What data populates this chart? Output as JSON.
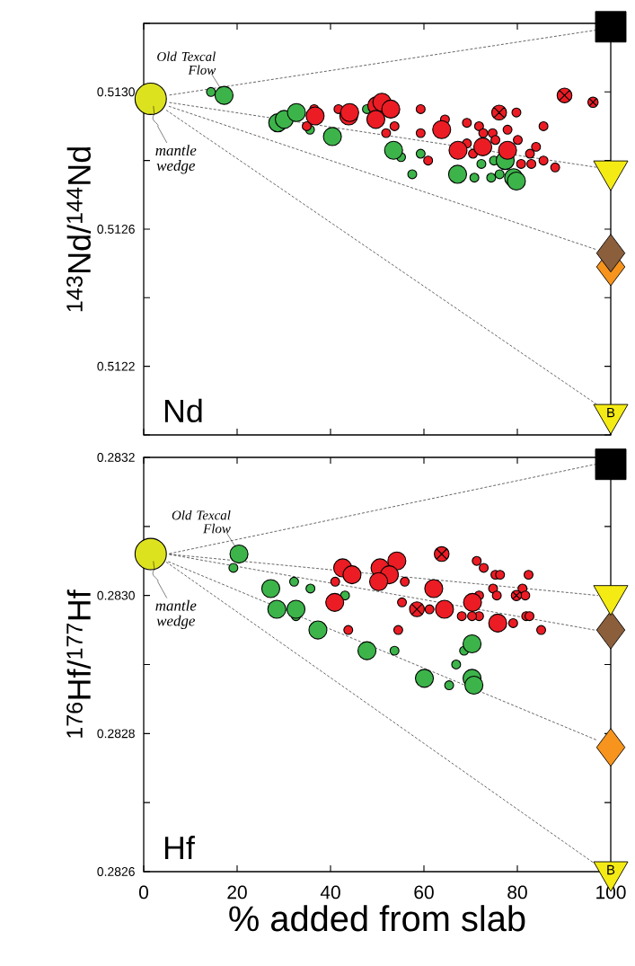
{
  "chart_data": [
    {
      "type": "bubble",
      "ylabel": "$^{143}$Nd/$^{144}$Nd",
      "xlim": [
        0,
        100
      ],
      "ylim": [
        0.512,
        0.5132
      ],
      "xticks": [
        0,
        20,
        40,
        60,
        80,
        100
      ],
      "yticks": [
        {
          "value": 0.512,
          "label": null
        },
        {
          "value": 0.5122,
          "label": "0.5122"
        },
        {
          "value": 0.5124,
          "label": null
        },
        {
          "value": 0.5126,
          "label": "0.5126"
        },
        {
          "value": 0.5128,
          "label": null
        },
        {
          "value": 0.513,
          "label": "0.5130"
        },
        {
          "value": 0.5132,
          "label": null
        }
      ],
      "tick_labels": "y",
      "annotations": [
        "Nd",
        {
          "text": "Old Texcal Flow",
          "x": 17.2,
          "y": 0.51299
        },
        {
          "text": "mantle wedge",
          "x": 1.5,
          "y": 0.51298
        },
        "B"
      ],
      "series": [
        {
          "type": "line",
          "line_style": "dashed",
          "color": "#000000",
          "x": [
            5.1,
            96.7
          ],
          "values": [
            0.51299,
            0.51318
          ]
        },
        {
          "type": "line",
          "line_style": "dashed",
          "color": "#000000",
          "x": [
            5.1,
            97.1
          ],
          "values": [
            0.51297,
            0.51278
          ]
        },
        {
          "type": "line",
          "line_style": "dashed",
          "color": "#000000",
          "x": [
            5.0,
            97.0
          ],
          "values": [
            0.51296,
            0.51254
          ]
        },
        {
          "type": "line",
          "line_style": "dashed",
          "color": "#000000",
          "x": [
            4.5,
            96.9
          ],
          "values": [
            0.51295,
            0.51209
          ]
        },
        {
          "type": "bubble",
          "marker": "circle",
          "color": "#3cb44a",
          "x": [
            14.4,
            35.6,
            47.8,
            55.1,
            59.3,
            57.5,
            70.8,
            72.3,
            74.4,
            76.2,
            75.0
          ],
          "values": [
            0.513,
            0.51289,
            0.51295,
            0.51281,
            0.51282,
            0.51276,
            0.51275,
            0.51279,
            0.51275,
            0.51276,
            0.5128
          ],
          "sizes": [
            0.08,
            0.08,
            0.08,
            0.08,
            0.08,
            0.08,
            0.08,
            0.08,
            0.08,
            0.08,
            0.08
          ]
        },
        {
          "type": "bubble",
          "marker": "circle",
          "color": "#ec1c24",
          "x": [
            36.5,
            34.9,
            41.7,
            53.7,
            51.9,
            59.3,
            59.3,
            60.9,
            64.5,
            69.2,
            71.8,
            72.7,
            74.7,
            75.3,
            79.8,
            77.9,
            80.1,
            85.6,
            84.0,
            82.7,
            80.8,
            83.0,
            85.6,
            88.1,
            70.5,
            69.2
          ],
          "values": [
            0.51295,
            0.5129,
            0.51295,
            0.5129,
            0.51288,
            0.51295,
            0.51288,
            0.5128,
            0.51292,
            0.51291,
            0.5129,
            0.51288,
            0.51288,
            0.51286,
            0.51294,
            0.51289,
            0.51286,
            0.5129,
            0.51284,
            0.51282,
            0.51279,
            0.51279,
            0.5128,
            0.51278,
            0.51282,
            0.51285
          ],
          "sizes": [
            0.08,
            0.08,
            0.08,
            0.08,
            0.08,
            0.08,
            0.08,
            0.08,
            0.08,
            0.08,
            0.08,
            0.08,
            0.08,
            0.08,
            0.08,
            0.08,
            0.08,
            0.08,
            0.08,
            0.08,
            0.08,
            0.08,
            0.08,
            0.08,
            0.08,
            0.08
          ]
        },
        {
          "type": "bubble",
          "marker": "cross",
          "color": "#ec1c24",
          "x": [
            96.2
          ],
          "values": [
            0.51297
          ],
          "sizes": [
            0.16
          ]
        },
        {
          "type": "bubble",
          "marker": "circle",
          "color": "#3cb44a",
          "x": [
            17.2,
            28.7,
            30.1,
            32.7,
            40.4,
            53.5,
            67.2,
            77.4,
            79.2,
            79.8
          ],
          "values": [
            0.51299,
            0.51291,
            0.51292,
            0.51294,
            0.51287,
            0.51283,
            0.51276,
            0.5128,
            0.51275,
            0.51274
          ],
          "sizes": [
            0.33,
            0.33,
            0.33,
            0.33,
            0.33,
            0.33,
            0.33,
            0.33,
            0.33,
            0.33
          ]
        },
        {
          "type": "bubble",
          "marker": "circle",
          "color": "#ec1c24",
          "x": [
            36.7,
            43.9,
            44.1,
            49.9,
            51.0,
            52.9,
            49.7,
            63.8,
            67.3,
            72.6,
            77.9
          ],
          "values": [
            0.51293,
            0.51293,
            0.51294,
            0.51296,
            0.51297,
            0.51295,
            0.51292,
            0.51289,
            0.51283,
            0.51284,
            0.51283
          ],
          "sizes": [
            0.33,
            0.33,
            0.33,
            0.33,
            0.33,
            0.33,
            0.33,
            0.33,
            0.33,
            0.33,
            0.33
          ]
        },
        {
          "type": "bubble",
          "marker": "cross",
          "color": "#ec1c24",
          "x": [
            76.1,
            90.1
          ],
          "values": [
            0.51294,
            0.51299
          ],
          "sizes": [
            0.33,
            0.33
          ]
        },
        {
          "type": "bubble",
          "marker": "circle",
          "color": "#dde21f",
          "x": [
            1.5
          ],
          "values": [
            0.51298
          ],
          "sizes": [
            1
          ]
        },
        {
          "type": "scatter",
          "marker": "square",
          "color": "#000000",
          "x": [
            100
          ],
          "values": [
            0.51319
          ]
        },
        {
          "type": "scatter",
          "marker": "diamond",
          "color": "#f7941d",
          "x": [
            100
          ],
          "values": [
            0.51249
          ]
        },
        {
          "type": "scatter",
          "marker": "diamond",
          "color": "#8b5e3c",
          "x": [
            100
          ],
          "values": [
            0.51253
          ]
        },
        {
          "type": "scatter",
          "marker": "triangle",
          "color": "#f5eb14",
          "x": [
            100
          ],
          "values": [
            0.51277
          ]
        },
        {
          "type": "scatter",
          "marker": "triangle",
          "color": "#f5eb14",
          "x": [
            100
          ],
          "values": [
            0.51206
          ]
        }
      ]
    },
    {
      "type": "bubble",
      "ylabel": "$^{176}$Hf/$^{177}$Hf",
      "xlabel": "% added from slab",
      "xlim": [
        0,
        100
      ],
      "ylim": [
        0.2826,
        0.2832
      ],
      "xticks": [
        0,
        20,
        40,
        60,
        80,
        100
      ],
      "yticks": [
        {
          "value": 0.2826,
          "label": "0.2826"
        },
        {
          "value": 0.2827,
          "label": null
        },
        {
          "value": 0.2828,
          "label": "0.2828"
        },
        {
          "value": 0.2829,
          "label": null
        },
        {
          "value": 0.283,
          "label": "0.2830"
        },
        {
          "value": 0.2831,
          "label": null
        },
        {
          "value": 0.2832,
          "label": "0.2832"
        }
      ],
      "annotations": [
        "Hf",
        {
          "text": "Old Texcal Flow",
          "x": 20.4,
          "y": 0.28306
        },
        {
          "text": "mantle wedge",
          "x": 1.5,
          "y": 0.28306
        },
        "B"
      ],
      "series": [
        {
          "type": "line",
          "line_style": "dashed",
          "color": "#000000",
          "x": [
            5.1,
            96.7
          ],
          "values": [
            0.28306,
            0.28319
          ]
        },
        {
          "type": "line",
          "line_style": "dashed",
          "color": "#000000",
          "x": [
            5.1,
            97.3
          ],
          "values": [
            0.28306,
            0.283
          ]
        },
        {
          "type": "line",
          "line_style": "dashed",
          "color": "#000000",
          "x": [
            5.1,
            96.5
          ],
          "values": [
            0.28306,
            0.28295
          ]
        },
        {
          "type": "line",
          "line_style": "dashed",
          "color": "#000000",
          "x": [
            4.9,
            97.2
          ],
          "values": [
            0.28305,
            0.28279
          ]
        },
        {
          "type": "line",
          "line_style": "dashed",
          "color": "#000000",
          "x": [
            4.5,
            96.9
          ],
          "values": [
            0.28305,
            0.28261
          ]
        },
        {
          "type": "bubble",
          "marker": "circle",
          "color": "#3cb44a",
          "x": [
            19.2,
            32.2,
            35.7,
            32.6,
            43.1,
            53.7,
            66.9,
            65.4,
            68.6
          ],
          "values": [
            0.28304,
            0.28302,
            0.28301,
            0.28297,
            0.283,
            0.28292,
            0.2829,
            0.28287,
            0.28292
          ],
          "sizes": [
            0.08,
            0.08,
            0.08,
            0.08,
            0.08,
            0.08,
            0.08,
            0.08,
            0.08
          ]
        },
        {
          "type": "bubble",
          "marker": "circle",
          "color": "#ec1c24",
          "x": [
            41.0,
            55.9,
            55.3,
            54.5,
            43.8,
            61.2,
            71.3,
            72.8,
            75.3,
            76.3,
            74.8,
            71.8,
            75.6,
            82.4,
            81.1,
            81.7,
            68.1,
            71.8,
            81.9,
            82.6,
            79.1,
            85.1,
            70.3
          ],
          "values": [
            0.28302,
            0.28302,
            0.28299,
            0.28295,
            0.28295,
            0.28298,
            0.28305,
            0.28304,
            0.28303,
            0.28303,
            0.28301,
            0.283,
            0.283,
            0.28303,
            0.28301,
            0.283,
            0.28297,
            0.28297,
            0.28297,
            0.28297,
            0.28296,
            0.28295,
            0.28297
          ],
          "sizes": [
            0.08,
            0.08,
            0.08,
            0.08,
            0.08,
            0.08,
            0.08,
            0.08,
            0.08,
            0.08,
            0.08,
            0.08,
            0.08,
            0.08,
            0.08,
            0.08,
            0.08,
            0.08,
            0.08,
            0.08,
            0.08,
            0.08,
            0.08
          ]
        },
        {
          "type": "bubble",
          "marker": "cross",
          "color": "#ec1c24",
          "x": [
            79.8
          ],
          "values": [
            0.283
          ],
          "sizes": [
            0.16
          ]
        },
        {
          "type": "bubble",
          "marker": "circle",
          "color": "#3cb44a",
          "x": [
            20.4,
            27.2,
            28.5,
            32.6,
            37.3,
            47.8,
            60.1,
            70.3,
            70.3,
            70.7
          ],
          "values": [
            0.28306,
            0.28301,
            0.28298,
            0.28298,
            0.28295,
            0.28292,
            0.28288,
            0.28293,
            0.28288,
            0.28287
          ],
          "sizes": [
            0.33,
            0.33,
            0.33,
            0.33,
            0.33,
            0.33,
            0.33,
            0.33,
            0.33,
            0.33
          ]
        },
        {
          "type": "bubble",
          "marker": "circle",
          "color": "#ec1c24",
          "x": [
            42.6,
            44.6,
            50.6,
            54.2,
            52.6,
            50.3,
            40.9,
            62.1,
            64.4,
            70.4,
            75.8
          ],
          "values": [
            0.28304,
            0.28303,
            0.28304,
            0.28305,
            0.28303,
            0.28302,
            0.28299,
            0.28301,
            0.28298,
            0.28299,
            0.28296
          ],
          "sizes": [
            0.33,
            0.33,
            0.33,
            0.33,
            0.33,
            0.33,
            0.33,
            0.33,
            0.33,
            0.33,
            0.33
          ]
        },
        {
          "type": "bubble",
          "marker": "cross",
          "color": "#ec1c24",
          "x": [
            63.8,
            58.5
          ],
          "values": [
            0.28306,
            0.28298
          ],
          "sizes": [
            0.33,
            0.33
          ]
        },
        {
          "type": "bubble",
          "marker": "circle",
          "color": "#dde21f",
          "x": [
            1.5
          ],
          "values": [
            0.28306
          ],
          "sizes": [
            1
          ]
        },
        {
          "type": "scatter",
          "marker": "square",
          "color": "#000000",
          "x": [
            100
          ],
          "values": [
            0.28319
          ]
        },
        {
          "type": "scatter",
          "marker": "diamond",
          "color": "#f7941d",
          "x": [
            100
          ],
          "values": [
            0.28278
          ]
        },
        {
          "type": "scatter",
          "marker": "diamond",
          "color": "#8b5e3c",
          "x": [
            100
          ],
          "values": [
            0.28295
          ]
        },
        {
          "type": "scatter",
          "marker": "triangle",
          "color": "#f5eb14",
          "x": [
            100
          ],
          "values": [
            0.283
          ]
        },
        {
          "type": "scatter",
          "marker": "triangle",
          "color": "#f5eb14",
          "x": [
            100
          ],
          "values": [
            0.2826
          ]
        }
      ]
    }
  ]
}
